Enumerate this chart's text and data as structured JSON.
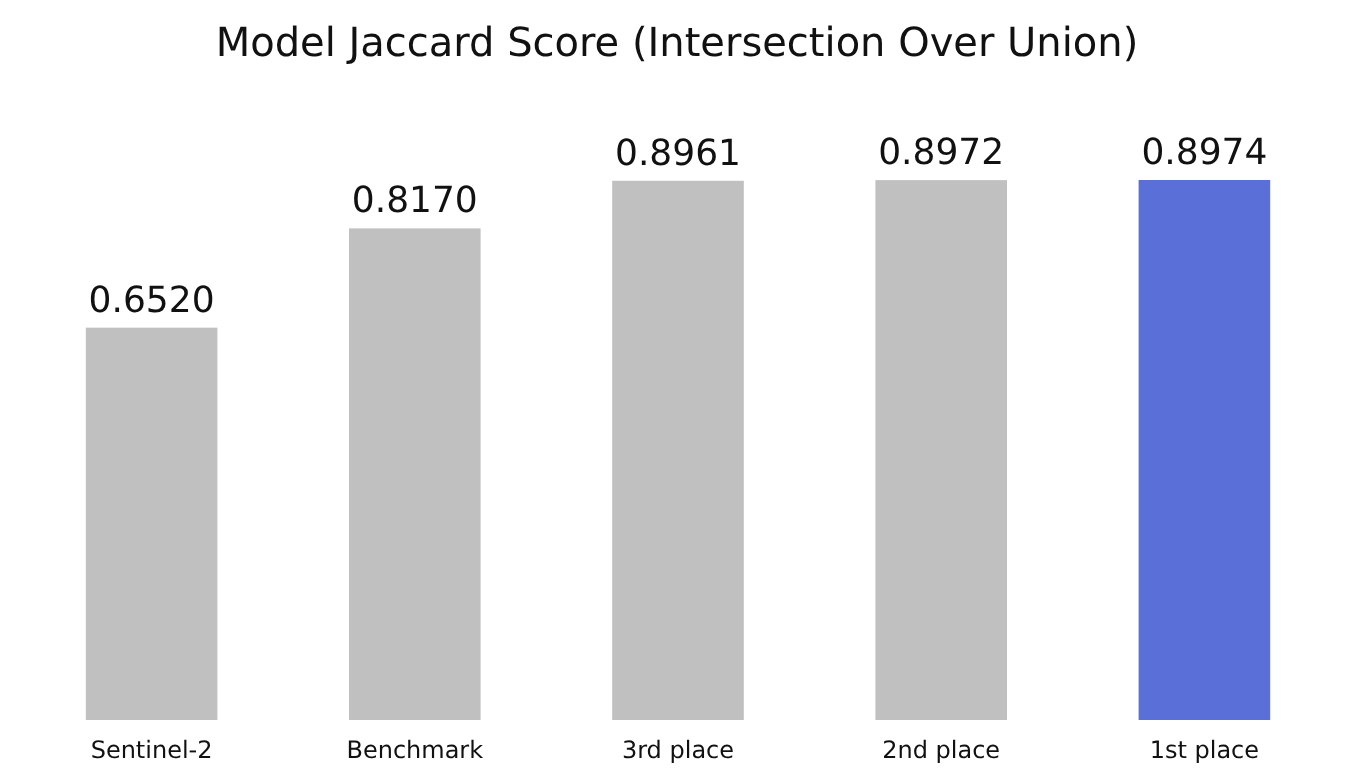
{
  "chart_data": {
    "type": "bar",
    "title": "Model Jaccard Score (Intersection Over Union)",
    "categories": [
      "Sentinel-2",
      "Benchmark",
      "3rd place",
      "2nd place",
      "1st place"
    ],
    "values": [
      0.652,
      0.817,
      0.8961,
      0.8972,
      0.8974
    ],
    "value_labels": [
      "0.6520",
      "0.8170",
      "0.8961",
      "0.8972",
      "0.8974"
    ],
    "colors": [
      "#c0c0c0",
      "#c0c0c0",
      "#c0c0c0",
      "#c0c0c0",
      "#5a70d8"
    ],
    "tick_labels": "x"
  }
}
